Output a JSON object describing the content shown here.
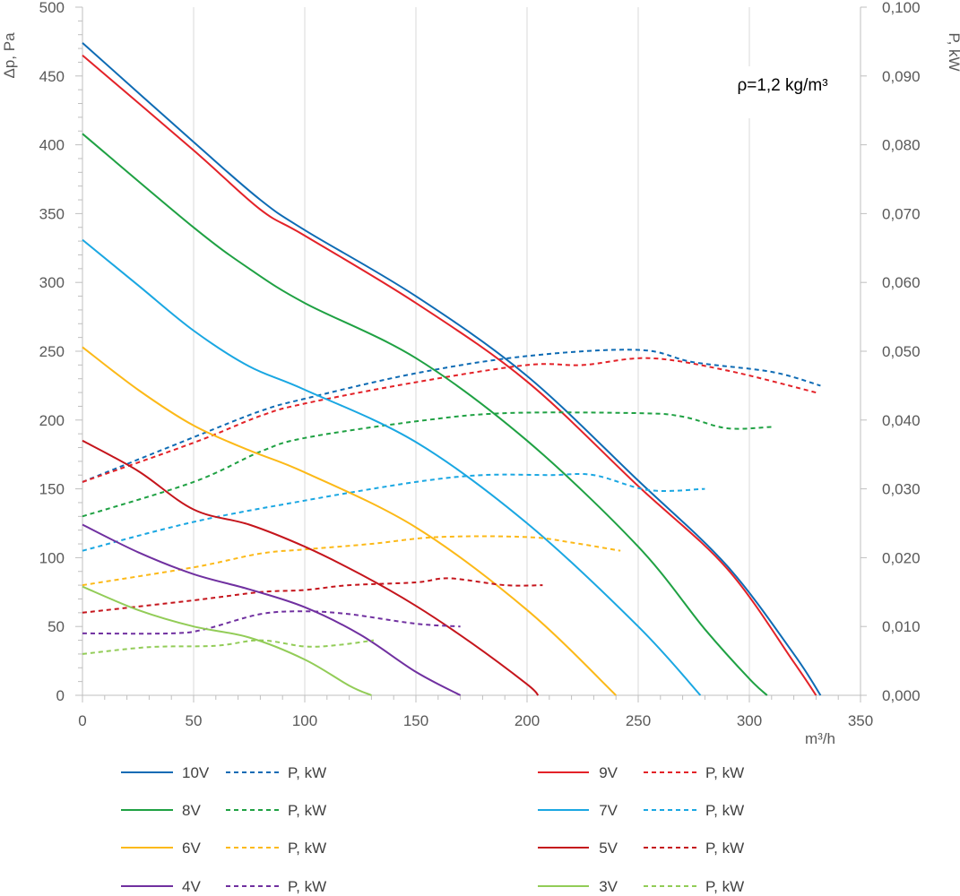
{
  "chart_data": {
    "type": "line",
    "annotation": "ρ=1,2 kg/m³",
    "xlabel": "m³/h",
    "ylabel": "Δp, Pa",
    "y2label": "P, kW",
    "xlim": [
      0,
      350
    ],
    "ylim": [
      0,
      500
    ],
    "y2lim": [
      0,
      0.1
    ],
    "x_ticks": [
      0,
      50,
      100,
      150,
      200,
      250,
      300,
      350
    ],
    "x_tick_labels": [
      "0",
      "50",
      "100",
      "150",
      "200",
      "250",
      "300",
      "350"
    ],
    "y_ticks": [
      0,
      50,
      100,
      150,
      200,
      250,
      300,
      350,
      400,
      450,
      500
    ],
    "y_tick_labels": [
      "0",
      "50",
      "100",
      "150",
      "200",
      "250",
      "300",
      "350",
      "400",
      "450",
      "500"
    ],
    "y2_ticks": [
      0,
      0.01,
      0.02,
      0.03,
      0.04,
      0.05,
      0.06,
      0.07,
      0.08,
      0.09,
      0.1
    ],
    "y2_tick_labels": [
      "0,000",
      "0,010",
      "0,020",
      "0,030",
      "0,040",
      "0,050",
      "0,060",
      "0,070",
      "0,080",
      "0,090",
      "0,100"
    ],
    "grid": "vertical major gridlines",
    "legend_position": "bottom",
    "series": [
      {
        "name": "10V",
        "power_name": "P, kW",
        "color": "#0E6BB4",
        "pressure": [
          [
            0,
            474
          ],
          [
            50,
            402
          ],
          [
            80,
            360
          ],
          [
            100,
            338
          ],
          [
            150,
            290
          ],
          [
            200,
            232
          ],
          [
            250,
            156
          ],
          [
            290,
            94
          ],
          [
            320,
            30
          ],
          [
            332,
            0
          ]
        ],
        "power": [
          [
            0,
            0.031
          ],
          [
            50,
            0.0375
          ],
          [
            80,
            0.0413
          ],
          [
            100,
            0.0431
          ],
          [
            150,
            0.0468
          ],
          [
            200,
            0.0493
          ],
          [
            250,
            0.0502
          ],
          [
            275,
            0.0484
          ],
          [
            310,
            0.047
          ],
          [
            332,
            0.045
          ]
        ]
      },
      {
        "name": "9V",
        "power_name": "P, kW",
        "color": "#E32228",
        "pressure": [
          [
            0,
            465
          ],
          [
            50,
            396
          ],
          [
            80,
            353
          ],
          [
            100,
            334
          ],
          [
            150,
            285
          ],
          [
            200,
            228
          ],
          [
            250,
            152
          ],
          [
            290,
            92
          ],
          [
            320,
            24
          ],
          [
            330,
            0
          ]
        ],
        "power": [
          [
            0,
            0.031
          ],
          [
            50,
            0.0367
          ],
          [
            80,
            0.0406
          ],
          [
            100,
            0.0424
          ],
          [
            150,
            0.0455
          ],
          [
            200,
            0.048
          ],
          [
            225,
            0.048
          ],
          [
            255,
            0.049
          ],
          [
            290,
            0.0472
          ],
          [
            330,
            0.044
          ]
        ]
      },
      {
        "name": "8V",
        "power_name": "P, kW",
        "color": "#1FA143",
        "pressure": [
          [
            0,
            408
          ],
          [
            50,
            340
          ],
          [
            75,
            310
          ],
          [
            100,
            285
          ],
          [
            150,
            245
          ],
          [
            200,
            185
          ],
          [
            250,
            108
          ],
          [
            280,
            48
          ],
          [
            300,
            12
          ],
          [
            308,
            0
          ]
        ],
        "power": [
          [
            0,
            0.026
          ],
          [
            50,
            0.031
          ],
          [
            80,
            0.0354
          ],
          [
            100,
            0.0374
          ],
          [
            150,
            0.0398
          ],
          [
            190,
            0.041
          ],
          [
            250,
            0.041
          ],
          [
            270,
            0.0405
          ],
          [
            290,
            0.0388
          ],
          [
            310,
            0.039
          ]
        ]
      },
      {
        "name": "7V",
        "power_name": "P, kW",
        "color": "#1AA7E2",
        "pressure": [
          [
            0,
            331
          ],
          [
            25,
            298
          ],
          [
            50,
            265
          ],
          [
            75,
            239
          ],
          [
            100,
            222
          ],
          [
            150,
            184
          ],
          [
            200,
            125
          ],
          [
            250,
            50
          ],
          [
            278,
            0
          ]
        ],
        "power": [
          [
            0,
            0.021
          ],
          [
            50,
            0.0252
          ],
          [
            100,
            0.0283
          ],
          [
            150,
            0.031
          ],
          [
            180,
            0.032
          ],
          [
            210,
            0.032
          ],
          [
            230,
            0.032
          ],
          [
            255,
            0.0298
          ],
          [
            280,
            0.03
          ]
        ]
      },
      {
        "name": "6V",
        "power_name": "P, kW",
        "color": "#FCB918",
        "pressure": [
          [
            0,
            253
          ],
          [
            25,
            222
          ],
          [
            50,
            196
          ],
          [
            75,
            178
          ],
          [
            100,
            162
          ],
          [
            150,
            122
          ],
          [
            200,
            62
          ],
          [
            240,
            0
          ]
        ],
        "power": [
          [
            0,
            0.016
          ],
          [
            50,
            0.0186
          ],
          [
            80,
            0.0206
          ],
          [
            100,
            0.0212
          ],
          [
            130,
            0.022
          ],
          [
            160,
            0.023
          ],
          [
            200,
            0.023
          ],
          [
            220,
            0.0222
          ],
          [
            242,
            0.021
          ]
        ]
      },
      {
        "name": "5V",
        "power_name": "P, kW",
        "color": "#C5151C",
        "pressure": [
          [
            0,
            185
          ],
          [
            25,
            163
          ],
          [
            50,
            135
          ],
          [
            75,
            124
          ],
          [
            100,
            108
          ],
          [
            125,
            88
          ],
          [
            150,
            65
          ],
          [
            175,
            38
          ],
          [
            200,
            8
          ],
          [
            205,
            0
          ]
        ],
        "power": [
          [
            0,
            0.012
          ],
          [
            50,
            0.0138
          ],
          [
            80,
            0.015
          ],
          [
            100,
            0.0153
          ],
          [
            120,
            0.016
          ],
          [
            150,
            0.0164
          ],
          [
            165,
            0.017
          ],
          [
            190,
            0.016
          ],
          [
            207,
            0.016
          ]
        ]
      },
      {
        "name": "4V",
        "power_name": "P, kW",
        "color": "#7030A0",
        "pressure": [
          [
            0,
            124
          ],
          [
            25,
            104
          ],
          [
            50,
            88
          ],
          [
            75,
            77
          ],
          [
            100,
            64
          ],
          [
            125,
            44
          ],
          [
            150,
            17
          ],
          [
            170,
            0
          ]
        ],
        "power": [
          [
            0,
            0.009
          ],
          [
            40,
            0.009
          ],
          [
            55,
            0.0096
          ],
          [
            80,
            0.0118
          ],
          [
            100,
            0.0122
          ],
          [
            120,
            0.0118
          ],
          [
            150,
            0.0104
          ],
          [
            170,
            0.01
          ]
        ]
      },
      {
        "name": "3V",
        "power_name": "P, kW",
        "color": "#92CC57",
        "pressure": [
          [
            0,
            79
          ],
          [
            25,
            62
          ],
          [
            50,
            50
          ],
          [
            75,
            42
          ],
          [
            100,
            26
          ],
          [
            120,
            7
          ],
          [
            130,
            0
          ]
        ],
        "power": [
          [
            0,
            0.006
          ],
          [
            30,
            0.007
          ],
          [
            60,
            0.0072
          ],
          [
            80,
            0.008
          ],
          [
            100,
            0.0071
          ],
          [
            115,
            0.0073
          ],
          [
            131,
            0.008
          ]
        ]
      }
    ]
  }
}
